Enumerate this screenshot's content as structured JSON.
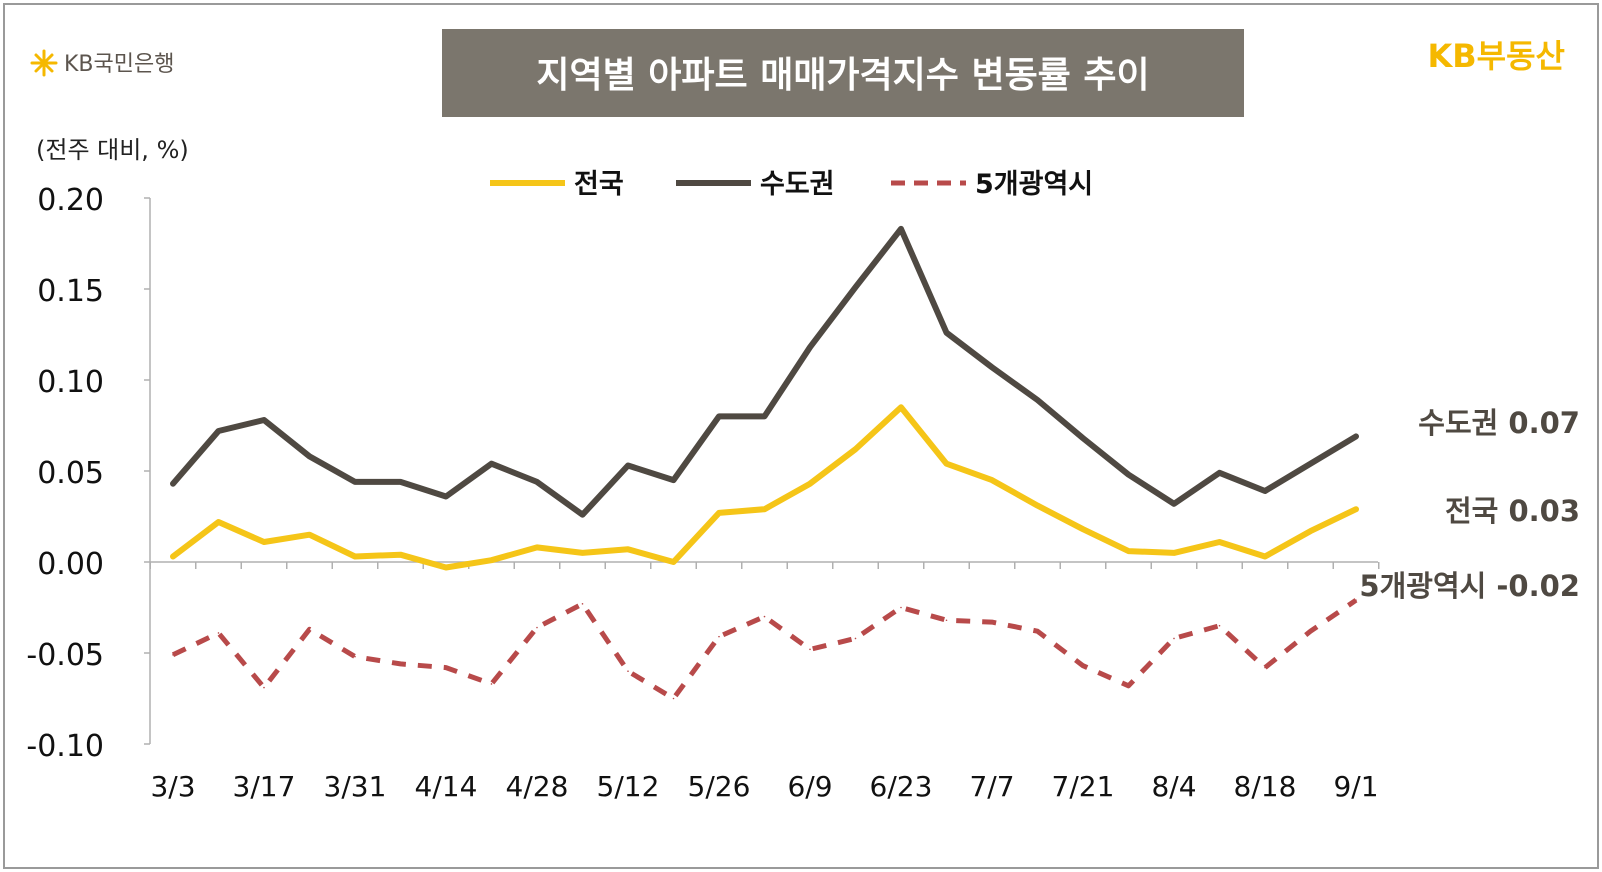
{
  "header": {
    "bank_logo_text": "KB국민은행",
    "title": "지역별 아파트 매매가격지수 변동률 추이",
    "brand_text": "KB부동산"
  },
  "chart_data": {
    "type": "line",
    "unit_label": "(전주 대비, %)",
    "ylim": [
      -0.1,
      0.2
    ],
    "y_ticks": [
      "0.20",
      "0.15",
      "0.10",
      "0.05",
      "0.00",
      "-0.05",
      "-0.10"
    ],
    "x_tick_labels": [
      "3/3",
      "3/17",
      "3/31",
      "4/14",
      "4/28",
      "5/12",
      "5/26",
      "6/9",
      "6/23",
      "7/7",
      "7/21",
      "8/4",
      "8/18",
      "9/1"
    ],
    "x": [
      "3/3",
      "3/10",
      "3/17",
      "3/24",
      "3/31",
      "4/7",
      "4/14",
      "4/21",
      "4/28",
      "5/5",
      "5/12",
      "5/19",
      "5/26",
      "6/2",
      "6/9",
      "6/16",
      "6/23",
      "6/30",
      "7/7",
      "7/14",
      "7/21",
      "7/28",
      "8/4",
      "8/11",
      "8/18",
      "8/25",
      "9/1"
    ],
    "legend_position": "top-center",
    "grid": false,
    "series": [
      {
        "name": "전국",
        "color": "#F5C518",
        "style": "solid",
        "values": [
          0.003,
          0.022,
          0.011,
          0.015,
          0.003,
          0.004,
          -0.003,
          0.001,
          0.008,
          0.005,
          0.007,
          0.0,
          0.027,
          0.029,
          0.043,
          0.062,
          0.085,
          0.054,
          0.045,
          0.031,
          0.018,
          0.006,
          0.005,
          0.011,
          0.003,
          0.017,
          0.029
        ],
        "end_label": "전국 0.03"
      },
      {
        "name": "수도권",
        "color": "#4F4942",
        "style": "solid",
        "values": [
          0.043,
          0.072,
          0.078,
          0.058,
          0.044,
          0.044,
          0.036,
          0.054,
          0.044,
          0.026,
          0.053,
          0.045,
          0.08,
          0.08,
          0.118,
          0.151,
          0.183,
          0.126,
          0.107,
          0.089,
          0.068,
          0.048,
          0.032,
          0.049,
          0.039,
          0.054,
          0.069
        ],
        "end_label": "수도권 0.07"
      },
      {
        "name": "5개광역시",
        "color": "#B84A4A",
        "style": "dashed",
        "values": [
          -0.051,
          -0.039,
          -0.069,
          -0.037,
          -0.052,
          -0.056,
          -0.058,
          -0.067,
          -0.036,
          -0.023,
          -0.06,
          -0.075,
          -0.041,
          -0.03,
          -0.048,
          -0.042,
          -0.025,
          -0.032,
          -0.033,
          -0.038,
          -0.057,
          -0.068,
          -0.042,
          -0.035,
          -0.058,
          -0.038,
          -0.021
        ],
        "end_label": "5개광역시 -0.02"
      }
    ]
  }
}
